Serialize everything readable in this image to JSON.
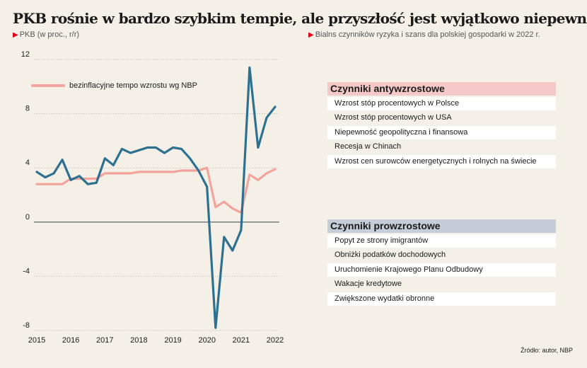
{
  "title": "PKB rośnie w bardzo szybkim tempie, ale przyszłość jest wyjątkowo niepewna",
  "subtitle_left": "PKB (w proc., r/r)",
  "subtitle_right": "Bialns czynników ryzyka i szans dla polskiej gospodarki w 2022 r.",
  "source": "Źródło: autor, NBP",
  "colors": {
    "gdp": "#2e7090",
    "nbp": "#f2a49c",
    "accent": "#e2001a"
  },
  "chart_data": {
    "type": "line",
    "ylim": [
      -8,
      12
    ],
    "yticks": [
      "12",
      "8",
      "4",
      "0",
      "-4",
      "-8"
    ],
    "ytick_values": [
      12,
      8,
      4,
      0,
      -4,
      -8
    ],
    "xticks": [
      "2015",
      "2016",
      "2017",
      "2018",
      "2019",
      "2020",
      "2021",
      "2022"
    ],
    "xtick_values": [
      2015,
      2016,
      2017,
      2018,
      2019,
      2020,
      2021,
      2022
    ],
    "series": [
      {
        "name": "",
        "color": "#2e7090",
        "x": [
          2015.0,
          2015.25,
          2015.5,
          2015.75,
          2016.0,
          2016.25,
          2016.5,
          2016.75,
          2017.0,
          2017.25,
          2017.5,
          2017.75,
          2018.0,
          2018.25,
          2018.5,
          2018.75,
          2019.0,
          2019.25,
          2019.5,
          2019.75,
          2020.0,
          2020.25,
          2020.5,
          2020.75,
          2021.0,
          2021.25,
          2021.5,
          2021.75,
          2022.0
        ],
        "y": [
          3.7,
          3.3,
          3.6,
          4.6,
          3.1,
          3.4,
          2.8,
          2.9,
          4.7,
          4.2,
          5.4,
          5.1,
          5.3,
          5.5,
          5.5,
          5.1,
          5.5,
          5.4,
          4.7,
          3.8,
          2.6,
          -7.8,
          -1.1,
          -2.1,
          -0.6,
          11.4,
          5.5,
          7.7,
          8.5
        ]
      },
      {
        "name": "bezinflacyjne tempo wzrostu wg NBP",
        "color": "#f2a49c",
        "x": [
          2015.0,
          2015.25,
          2015.5,
          2015.75,
          2016.0,
          2016.25,
          2016.5,
          2016.75,
          2017.0,
          2017.25,
          2017.5,
          2017.75,
          2018.0,
          2018.25,
          2018.5,
          2018.75,
          2019.0,
          2019.25,
          2019.5,
          2019.75,
          2020.0,
          2020.25,
          2020.5,
          2020.75,
          2021.0,
          2021.25,
          2021.5,
          2021.75,
          2022.0
        ],
        "y": [
          2.8,
          2.8,
          2.8,
          2.8,
          3.2,
          3.2,
          3.2,
          3.2,
          3.6,
          3.6,
          3.6,
          3.6,
          3.7,
          3.7,
          3.7,
          3.7,
          3.7,
          3.8,
          3.8,
          3.8,
          4.0,
          1.1,
          1.5,
          1.0,
          0.7,
          3.5,
          3.1,
          3.6,
          3.9
        ]
      }
    ]
  },
  "panel_anti": {
    "title": "Czynniki antywzrostowe",
    "items": [
      "Wzrost stóp procentowych w Polsce",
      "Wzrost stóp procentowych w USA",
      "Niepewność geopolityczna i finansowa",
      "Recesja w Chinach",
      "Wzrost cen surowców energetycznych i rolnych na świecie"
    ]
  },
  "panel_pro": {
    "title": "Czynniki prowzrostowe",
    "items": [
      "Popyt ze strony imigrantów",
      "Obniżki podatków dochodowych",
      "Uruchomienie Krajowego Planu Odbudowy",
      "Wakacje kredytowe",
      "Zwiększone wydatki obronne"
    ]
  }
}
